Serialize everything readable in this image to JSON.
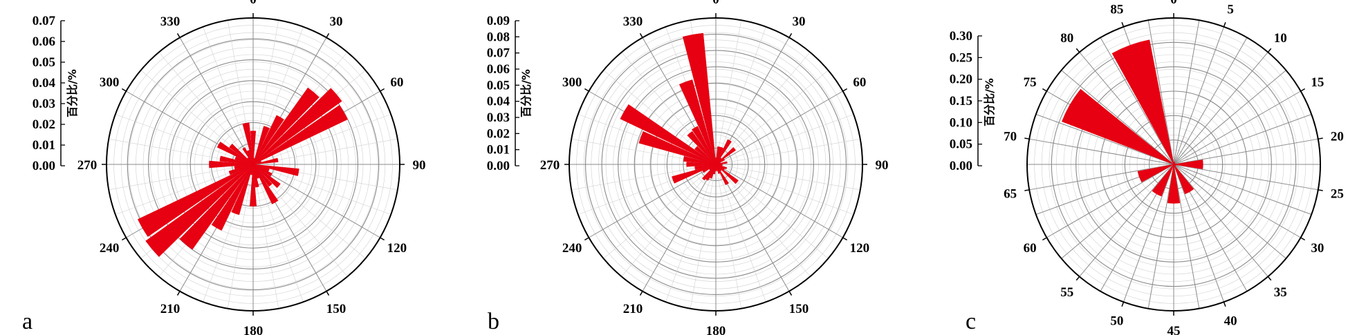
{
  "colors": {
    "bar": "#e60012",
    "grid_major": "#8a8a8a",
    "grid_minor": "#d0d0d0",
    "axis": "#000000"
  },
  "chart_data": [
    {
      "type": "bar",
      "subtype": "polar-rose",
      "panel_label": "a",
      "ylabel": "百分比/%",
      "radial_range": [
        0,
        0.07
      ],
      "radial_ticks": [
        "0.00",
        "0.01",
        "0.02",
        "0.03",
        "0.04",
        "0.05",
        "0.06",
        "0.07"
      ],
      "angle_range": [
        0,
        360
      ],
      "angle_labels": [
        "0",
        "30",
        "60",
        "90",
        "120",
        "150",
        "180",
        "210",
        "240",
        "270",
        "300",
        "330"
      ],
      "angle_label_values": [
        0,
        30,
        60,
        90,
        120,
        150,
        180,
        210,
        240,
        270,
        300,
        330
      ],
      "bin_width": 10,
      "bins": [
        {
          "angle": 0,
          "value": 0.016
        },
        {
          "angle": 10,
          "value": 0.003
        },
        {
          "angle": 20,
          "value": 0.019
        },
        {
          "angle": 30,
          "value": 0.026
        },
        {
          "angle": 40,
          "value": 0.045
        },
        {
          "angle": 50,
          "value": 0.052
        },
        {
          "angle": 60,
          "value": 0.05
        },
        {
          "angle": 70,
          "value": 0.004
        },
        {
          "angle": 80,
          "value": 0.012
        },
        {
          "angle": 100,
          "value": 0.022
        },
        {
          "angle": 110,
          "value": 0.008
        },
        {
          "angle": 120,
          "value": 0.01
        },
        {
          "angle": 130,
          "value": 0.016
        },
        {
          "angle": 140,
          "value": 0.013
        },
        {
          "angle": 150,
          "value": 0.021
        },
        {
          "angle": 160,
          "value": 0.007
        },
        {
          "angle": 170,
          "value": 0.011
        },
        {
          "angle": 180,
          "value": 0.02
        },
        {
          "angle": 190,
          "value": 0.005
        },
        {
          "angle": 200,
          "value": 0.025
        },
        {
          "angle": 210,
          "value": 0.035
        },
        {
          "angle": 220,
          "value": 0.05
        },
        {
          "angle": 230,
          "value": 0.063
        },
        {
          "angle": 240,
          "value": 0.061
        },
        {
          "angle": 250,
          "value": 0.012
        },
        {
          "angle": 260,
          "value": 0.009
        },
        {
          "angle": 270,
          "value": 0.021
        },
        {
          "angle": 280,
          "value": 0.016
        },
        {
          "angle": 290,
          "value": 0.009
        },
        {
          "angle": 300,
          "value": 0.019
        },
        {
          "angle": 310,
          "value": 0.014
        },
        {
          "angle": 320,
          "value": 0.004
        },
        {
          "angle": 330,
          "value": 0.009
        },
        {
          "angle": 340,
          "value": 0.007
        },
        {
          "angle": 350,
          "value": 0.02
        }
      ]
    },
    {
      "type": "bar",
      "subtype": "polar-rose",
      "panel_label": "b",
      "ylabel": "百分比/%",
      "radial_range": [
        0,
        0.09
      ],
      "radial_ticks": [
        "0.00",
        "0.01",
        "0.02",
        "0.03",
        "0.04",
        "0.05",
        "0.06",
        "0.07",
        "0.08",
        "0.09"
      ],
      "angle_range": [
        0,
        360
      ],
      "angle_labels": [
        "0",
        "30",
        "60",
        "90",
        "120",
        "150",
        "180",
        "210",
        "240",
        "270",
        "300",
        "330"
      ],
      "angle_label_values": [
        0,
        30,
        60,
        90,
        120,
        150,
        180,
        210,
        240,
        270,
        300,
        330
      ],
      "bin_width": 10,
      "bins": [
        {
          "angle": 0,
          "value": 0.004
        },
        {
          "angle": 10,
          "value": 0.011
        },
        {
          "angle": 20,
          "value": 0.011
        },
        {
          "angle": 30,
          "value": 0.017
        },
        {
          "angle": 40,
          "value": 0.005
        },
        {
          "angle": 50,
          "value": 0.015
        },
        {
          "angle": 60,
          "value": 0.006
        },
        {
          "angle": 70,
          "value": 0.003
        },
        {
          "angle": 80,
          "value": 0.007
        },
        {
          "angle": 90,
          "value": 0.004
        },
        {
          "angle": 100,
          "value": 0.004
        },
        {
          "angle": 110,
          "value": 0.007
        },
        {
          "angle": 120,
          "value": 0.006
        },
        {
          "angle": 130,
          "value": 0.017
        },
        {
          "angle": 140,
          "value": 0.005
        },
        {
          "angle": 150,
          "value": 0.014
        },
        {
          "angle": 160,
          "value": 0.006
        },
        {
          "angle": 170,
          "value": 0.004
        },
        {
          "angle": 180,
          "value": 0.004
        },
        {
          "angle": 190,
          "value": 0.006
        },
        {
          "angle": 200,
          "value": 0.009
        },
        {
          "angle": 210,
          "value": 0.011
        },
        {
          "angle": 220,
          "value": 0.012
        },
        {
          "angle": 230,
          "value": 0.005
        },
        {
          "angle": 240,
          "value": 0.009
        },
        {
          "angle": 250,
          "value": 0.028
        },
        {
          "angle": 260,
          "value": 0.013
        },
        {
          "angle": 270,
          "value": 0.018
        },
        {
          "angle": 280,
          "value": 0.02
        },
        {
          "angle": 290,
          "value": 0.049
        },
        {
          "angle": 300,
          "value": 0.065
        },
        {
          "angle": 310,
          "value": 0.016
        },
        {
          "angle": 320,
          "value": 0.025
        },
        {
          "angle": 330,
          "value": 0.026
        },
        {
          "angle": 340,
          "value": 0.054
        },
        {
          "angle": 350,
          "value": 0.081
        }
      ]
    },
    {
      "type": "bar",
      "subtype": "polar-rose",
      "panel_label": "c",
      "ylabel": "百分比/%",
      "radial_range": [
        0,
        0.3
      ],
      "radial_ticks": [
        "0.00",
        "0.05",
        "0.10",
        "0.15",
        "0.20",
        "0.25",
        "0.30"
      ],
      "angle_range": [
        0,
        90
      ],
      "angle_labels": [
        "0",
        "5",
        "10",
        "15",
        "20",
        "25",
        "30",
        "35",
        "40",
        "45",
        "50",
        "55",
        "60",
        "65",
        "70",
        "75",
        "80",
        "85"
      ],
      "angle_label_values": [
        0,
        5,
        10,
        15,
        20,
        25,
        30,
        35,
        40,
        45,
        50,
        55,
        60,
        65,
        70,
        75,
        80,
        85
      ],
      "bin_width": 5,
      "bins": [
        {
          "angle": 0,
          "value": 0.005
        },
        {
          "angle": 5,
          "value": 0.005
        },
        {
          "angle": 10,
          "value": 0.004
        },
        {
          "angle": 20,
          "value": 0.005
        },
        {
          "angle": 22.5,
          "value": 0.06
        },
        {
          "angle": 30,
          "value": 0.005
        },
        {
          "angle": 37.5,
          "value": 0.065
        },
        {
          "angle": 45,
          "value": 0.08
        },
        {
          "angle": 52.5,
          "value": 0.07
        },
        {
          "angle": 62.5,
          "value": 0.075
        },
        {
          "angle": 75,
          "value": 0.245
        },
        {
          "angle": 85,
          "value": 0.26
        }
      ]
    }
  ]
}
